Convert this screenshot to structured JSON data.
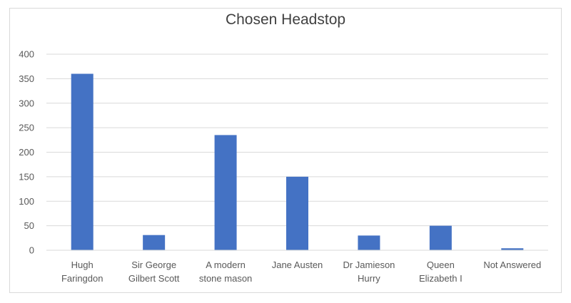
{
  "chart_data": {
    "type": "bar",
    "title": "Chosen Headstop",
    "xlabel": "",
    "ylabel": "",
    "ylim": [
      0,
      400
    ],
    "yticks": [
      0,
      50,
      100,
      150,
      200,
      250,
      300,
      350,
      400
    ],
    "grid": true,
    "legend": "none",
    "categories": [
      [
        "Hugh",
        "Faringdon"
      ],
      [
        "Sir George",
        "Gilbert Scott"
      ],
      [
        "A modern",
        "stone mason"
      ],
      [
        "Jane Austen"
      ],
      [
        "Dr Jamieson",
        "Hurry"
      ],
      [
        "Queen",
        "Elizabeth I"
      ],
      [
        "Not Answered"
      ]
    ],
    "values": [
      360,
      31,
      235,
      150,
      30,
      50,
      4
    ],
    "colors": {
      "bar": "#4472c4",
      "grid": "#d9d9d9",
      "text": "#595959"
    }
  }
}
